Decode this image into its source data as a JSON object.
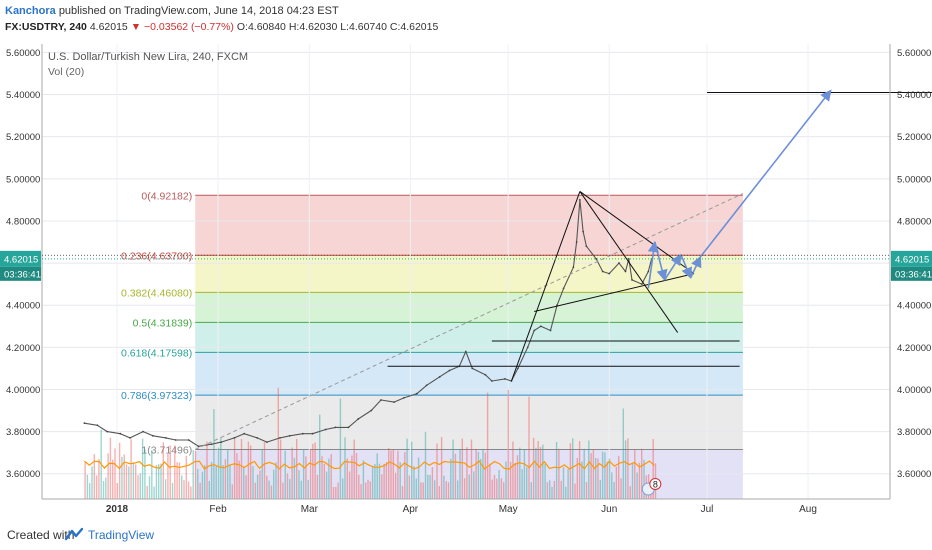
{
  "header": {
    "author": "Kanchora",
    "published": "published on TradingView.com, June 14, 2018 04:23 EST",
    "symbol": "FX:USDTRY, 240",
    "last": "4.62015",
    "change": "−0.03562 (−0.77%)",
    "open": "O:4.60840",
    "high": "H:4.62030",
    "low": "L:4.60740",
    "close": "C:4.62015"
  },
  "footer": {
    "created_with": "Created with",
    "brand": "TradingView"
  },
  "colors": {
    "up": "#26a69a",
    "down": "#ef5350",
    "fib_red": "#f4c7c7",
    "fib_yellow": "#f1f3b4",
    "fib_green": "#c9efc7",
    "fib_teal": "#bfe9e3",
    "fib_blue": "#c5e0f5",
    "fib_gray": "#e3e3e3",
    "fib_purple": "#d9d7f2",
    "price_tag": "#26a69a",
    "projection": "#6c8fd6"
  },
  "chart_data": {
    "type": "line",
    "title": "U.S. Dollar/Turkish New Lira, 240, FXCM",
    "subtitle": "Vol (20)",
    "x_ticks": [
      "2018",
      "Feb",
      "Mar",
      "Apr",
      "May",
      "Jun",
      "Jul",
      "Aug"
    ],
    "y_ticks": [
      "3.60000",
      "3.80000",
      "4.00000",
      "4.20000",
      "4.40000",
      "4.60000",
      "4.80000",
      "5.00000",
      "5.20000",
      "5.40000",
      "5.60000"
    ],
    "ylim": [
      3.48,
      5.64
    ],
    "price_label": "4.62015",
    "countdown": "03:36:41",
    "fib_levels": [
      {
        "level": "0",
        "value": 4.92182,
        "label": "0(4.92182)"
      },
      {
        "level": "0.236",
        "value": 4.637,
        "label": "0.236(4.63700)"
      },
      {
        "level": "0.382",
        "value": 4.4608,
        "label": "0.382(4.46080)"
      },
      {
        "level": "0.5",
        "value": 4.31839,
        "label": "0.5(4.31839)"
      },
      {
        "level": "0.618",
        "value": 4.17598,
        "label": "0.618(4.17598)"
      },
      {
        "level": "0.786",
        "value": 3.97323,
        "label": "0.786(3.97323)"
      },
      {
        "level": "1",
        "value": 3.71496,
        "label": "1(3.71496)"
      }
    ],
    "target_level": 5.41,
    "event_badge": "8",
    "series": [
      {
        "values": [
          [
            "2017-12-22",
            3.84
          ],
          [
            "2017-12-26",
            3.83
          ],
          [
            "2017-12-29",
            3.8
          ],
          [
            "2018-01-02",
            3.79
          ],
          [
            "2018-01-05",
            3.77
          ],
          [
            "2018-01-09",
            3.8
          ],
          [
            "2018-01-12",
            3.78
          ],
          [
            "2018-01-16",
            3.77
          ],
          [
            "2018-01-19",
            3.76
          ],
          [
            "2018-01-23",
            3.76
          ],
          [
            "2018-01-26",
            3.73
          ],
          [
            "2018-01-30",
            3.74
          ],
          [
            "2018-02-02",
            3.75
          ],
          [
            "2018-02-06",
            3.77
          ],
          [
            "2018-02-09",
            3.79
          ],
          [
            "2018-02-13",
            3.77
          ],
          [
            "2018-02-16",
            3.75
          ],
          [
            "2018-02-20",
            3.77
          ],
          [
            "2018-02-23",
            3.78
          ],
          [
            "2018-02-27",
            3.79
          ],
          [
            "2018-03-02",
            3.79
          ],
          [
            "2018-03-06",
            3.81
          ],
          [
            "2018-03-09",
            3.82
          ],
          [
            "2018-03-13",
            3.82
          ],
          [
            "2018-03-16",
            3.86
          ],
          [
            "2018-03-20",
            3.9
          ],
          [
            "2018-03-23",
            3.95
          ],
          [
            "2018-03-27",
            3.94
          ],
          [
            "2018-03-30",
            3.96
          ],
          [
            "2018-04-03",
            3.98
          ],
          [
            "2018-04-06",
            4.02
          ],
          [
            "2018-04-10",
            4.06
          ],
          [
            "2018-04-13",
            4.09
          ],
          [
            "2018-04-16",
            4.11
          ],
          [
            "2018-04-18",
            4.18
          ],
          [
            "2018-04-20",
            4.1
          ],
          [
            "2018-04-24",
            4.07
          ],
          [
            "2018-04-26",
            4.04
          ],
          [
            "2018-04-30",
            4.05
          ],
          [
            "2018-05-02",
            4.04
          ],
          [
            "2018-05-04",
            4.1
          ],
          [
            "2018-05-07",
            4.2
          ],
          [
            "2018-05-09",
            4.28
          ],
          [
            "2018-05-11",
            4.3
          ],
          [
            "2018-05-14",
            4.28
          ],
          [
            "2018-05-16",
            4.4
          ],
          [
            "2018-05-18",
            4.48
          ],
          [
            "2018-05-21",
            4.58
          ],
          [
            "2018-05-22",
            4.7
          ],
          [
            "2018-05-23",
            4.9
          ],
          [
            "2018-05-24",
            4.75
          ],
          [
            "2018-05-25",
            4.68
          ],
          [
            "2018-05-28",
            4.62
          ],
          [
            "2018-05-30",
            4.56
          ],
          [
            "2018-06-01",
            4.55
          ],
          [
            "2018-06-04",
            4.6
          ],
          [
            "2018-06-06",
            4.56
          ],
          [
            "2018-06-07",
            4.62
          ],
          [
            "2018-06-08",
            4.52
          ],
          [
            "2018-06-11",
            4.5
          ],
          [
            "2018-06-13",
            4.56
          ],
          [
            "2018-06-14",
            4.62
          ]
        ]
      }
    ],
    "grid": true,
    "legend": "none"
  }
}
